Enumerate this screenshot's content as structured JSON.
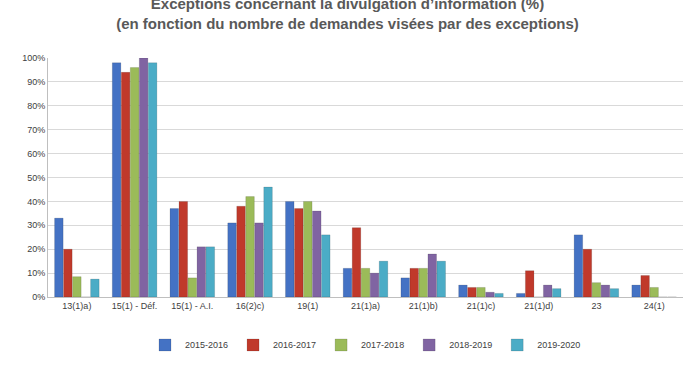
{
  "chart_data": {
    "type": "bar",
    "title": "Exceptions concernant la divulgation d’information (%)",
    "subtitle": "(en fonction du nombre de demandes visées par des exceptions)",
    "categories": [
      "13(1)a)",
      "15(1) - Déf.",
      "15(1) - A.I.",
      "16(2)c)",
      "19(1)",
      "21(1)a)",
      "21(1)b)",
      "21(1)c)",
      "21(1)d)",
      "23",
      "24(1)"
    ],
    "series": [
      {
        "name": "2015-2016",
        "color": "#4472c4",
        "values": [
          33,
          98,
          37,
          31,
          40,
          12,
          8,
          5,
          1.5,
          26,
          5
        ]
      },
      {
        "name": "2016-2017",
        "color": "#c0392b",
        "values": [
          20,
          94,
          40,
          38,
          37,
          29,
          12,
          4,
          11,
          20,
          9
        ]
      },
      {
        "name": "2017-2018",
        "color": "#9bbb59",
        "values": [
          8.5,
          96,
          8,
          42,
          40,
          12,
          12,
          4,
          0,
          6,
          4
        ]
      },
      {
        "name": "2018-2019",
        "color": "#8064a2",
        "values": [
          0,
          100,
          21,
          31,
          36,
          10,
          18,
          2,
          5,
          5,
          0
        ]
      },
      {
        "name": "2019-2020",
        "color": "#4bacc6",
        "values": [
          7.5,
          98,
          21,
          46,
          26,
          15,
          15,
          1.5,
          3.5,
          3.5,
          0
        ]
      }
    ],
    "ylim": [
      0,
      100
    ],
    "yticks": [
      {
        "value": 0,
        "label": "0%"
      },
      {
        "value": 10,
        "label": "10%"
      },
      {
        "value": 20,
        "label": "20%"
      },
      {
        "value": 30,
        "label": "30%"
      },
      {
        "value": 40,
        "label": "40%"
      },
      {
        "value": 50,
        "label": "50%"
      },
      {
        "value": 60,
        "label": "60%"
      },
      {
        "value": 70,
        "label": "70%"
      },
      {
        "value": 80,
        "label": "80%"
      },
      {
        "value": 90,
        "label": "90%"
      },
      {
        "value": 100,
        "label": "100%"
      }
    ],
    "grid": true,
    "legend": "bottom"
  }
}
